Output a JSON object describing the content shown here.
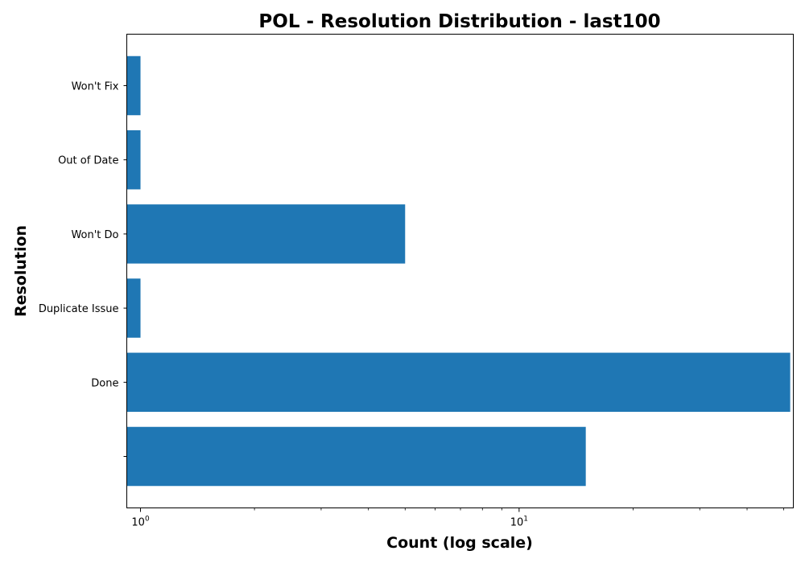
{
  "chart_data": {
    "type": "bar",
    "orientation": "horizontal",
    "title": "POL - Resolution Distribution - last100",
    "xlabel": "Count (log scale)",
    "ylabel": "Resolution",
    "x_scale": "log",
    "xlim": [
      0.92,
      53
    ],
    "grid": false,
    "legend": "none",
    "color": "#1f77b4",
    "categories": [
      "",
      "Done",
      "Duplicate Issue",
      "Won't Do",
      "Out of Date",
      "Won't Fix"
    ],
    "values": [
      15,
      52,
      1,
      5,
      1,
      1
    ],
    "x_major_ticks": [
      {
        "base": "10",
        "exp": "0",
        "value": 1
      },
      {
        "base": "10",
        "exp": "1",
        "value": 10
      }
    ]
  }
}
